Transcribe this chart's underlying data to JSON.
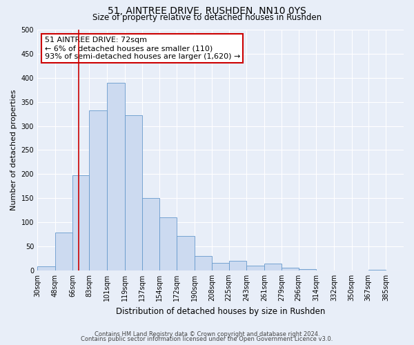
{
  "title": "51, AINTREE DRIVE, RUSHDEN, NN10 0YS",
  "subtitle": "Size of property relative to detached houses in Rushden",
  "xlabel": "Distribution of detached houses by size in Rushden",
  "ylabel": "Number of detached properties",
  "bin_labels": [
    "30sqm",
    "48sqm",
    "66sqm",
    "83sqm",
    "101sqm",
    "119sqm",
    "137sqm",
    "154sqm",
    "172sqm",
    "190sqm",
    "208sqm",
    "225sqm",
    "243sqm",
    "261sqm",
    "279sqm",
    "296sqm",
    "314sqm",
    "332sqm",
    "350sqm",
    "367sqm",
    "385sqm"
  ],
  "bar_heights": [
    8,
    78,
    197,
    333,
    390,
    322,
    150,
    110,
    72,
    30,
    15,
    20,
    10,
    14,
    5,
    2,
    0,
    0,
    0,
    1,
    0
  ],
  "bar_color": "#ccdaf0",
  "bar_edge_color": "#6699cc",
  "vline_x": 72,
  "vline_color": "#cc0000",
  "annotation_title": "51 AINTREE DRIVE: 72sqm",
  "annotation_line1": "← 6% of detached houses are smaller (110)",
  "annotation_line2": "93% of semi-detached houses are larger (1,620) →",
  "annotation_box_edge_color": "#cc0000",
  "ylim": [
    0,
    500
  ],
  "yticks": [
    0,
    50,
    100,
    150,
    200,
    250,
    300,
    350,
    400,
    450,
    500
  ],
  "bin_edges": [
    30,
    48,
    66,
    83,
    101,
    119,
    137,
    154,
    172,
    190,
    208,
    225,
    243,
    261,
    279,
    296,
    314,
    332,
    350,
    367,
    385,
    403
  ],
  "footer_line1": "Contains HM Land Registry data © Crown copyright and database right 2024.",
  "footer_line2": "Contains public sector information licensed under the Open Government Licence v3.0.",
  "bg_color": "#e8eef8",
  "plot_bg_color": "#e8eef8",
  "grid_color": "#ffffff",
  "title_fontsize": 10,
  "subtitle_fontsize": 8.5,
  "ylabel_fontsize": 8,
  "xlabel_fontsize": 8.5,
  "tick_fontsize": 7,
  "annotation_fontsize": 8,
  "footer_fontsize": 6
}
